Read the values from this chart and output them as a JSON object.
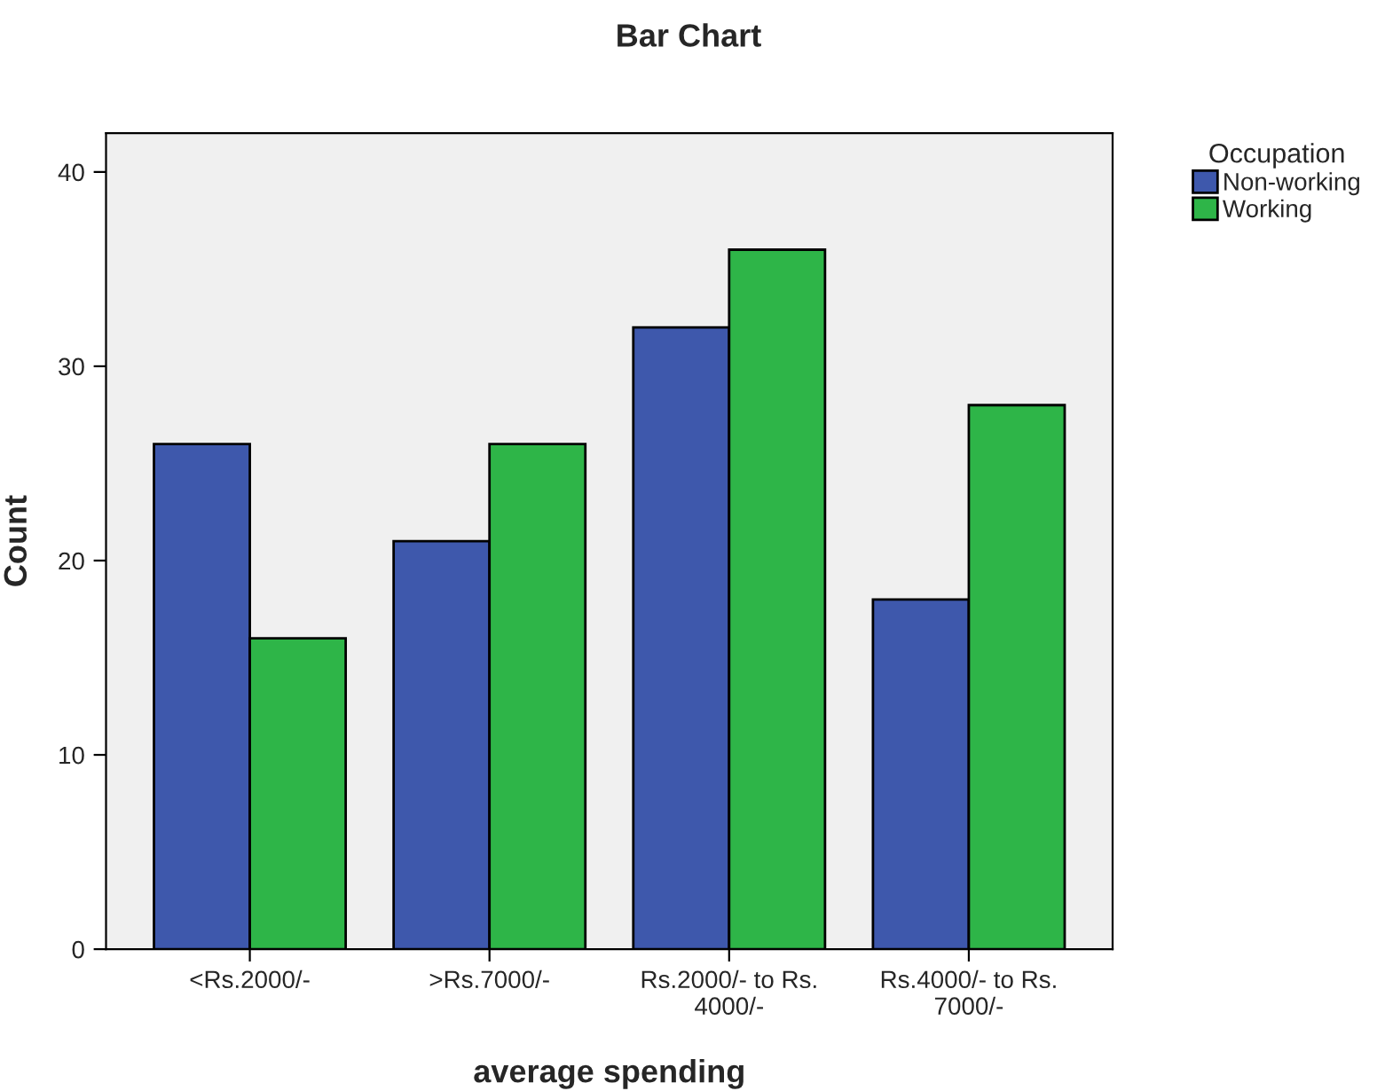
{
  "chart_data": {
    "type": "bar",
    "title": "Bar Chart",
    "xlabel": "average spending",
    "ylabel": "Count",
    "legend_title": "Occupation",
    "categories": [
      "<Rs.2000/-",
      ">Rs.7000/-",
      "Rs.2000/- to Rs. 4000/-",
      "Rs.4000/- to Rs. 7000/-"
    ],
    "series": [
      {
        "name": "Non-working",
        "color": "#3e58ac",
        "values": [
          26,
          21,
          32,
          18
        ]
      },
      {
        "name": "Working",
        "color": "#2eb548",
        "values": [
          16,
          26,
          36,
          28
        ]
      }
    ],
    "ylim": [
      0,
      42
    ],
    "yticks": [
      0,
      10,
      20,
      30,
      40
    ],
    "grid": false,
    "legend": "top right"
  }
}
